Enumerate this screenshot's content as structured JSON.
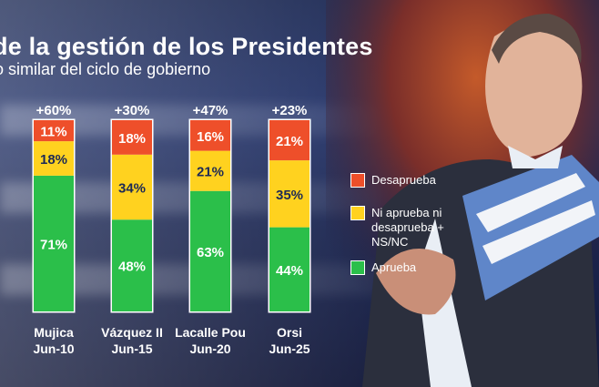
{
  "chart_data": {
    "type": "bar",
    "stacked": true,
    "title": "de la gestión de los Presidentes",
    "subtitle": "o similar del ciclo de gobierno",
    "categories": [
      {
        "name": "Mujica",
        "date": "Jun-10",
        "net": "+60%"
      },
      {
        "name": "Vázquez II",
        "date": "Jun-15",
        "net": "+30%"
      },
      {
        "name": "Lacalle Pou",
        "date": "Jun-20",
        "net": "+47%"
      },
      {
        "name": "Orsi",
        "date": "Jun-25",
        "net": "+23%"
      }
    ],
    "series": [
      {
        "name": "Aprueba",
        "color": "#2bbf4a",
        "values": [
          71,
          48,
          63,
          44
        ]
      },
      {
        "name": "Ni aprueba ni\ndesaprueba +\nNS/NC",
        "color": "#ffd21f",
        "values": [
          18,
          34,
          21,
          35
        ]
      },
      {
        "name": "Desaprueba",
        "color": "#ee4f2a",
        "values": [
          11,
          18,
          16,
          21
        ]
      }
    ],
    "legend_order": [
      "Desaprueba",
      "Ni aprueba ni\ndesaprueba +\nNS/NC",
      "Aprueba"
    ],
    "value_suffix": "%",
    "legend_position": "right",
    "grid": false,
    "ylim": [
      0,
      100
    ]
  }
}
